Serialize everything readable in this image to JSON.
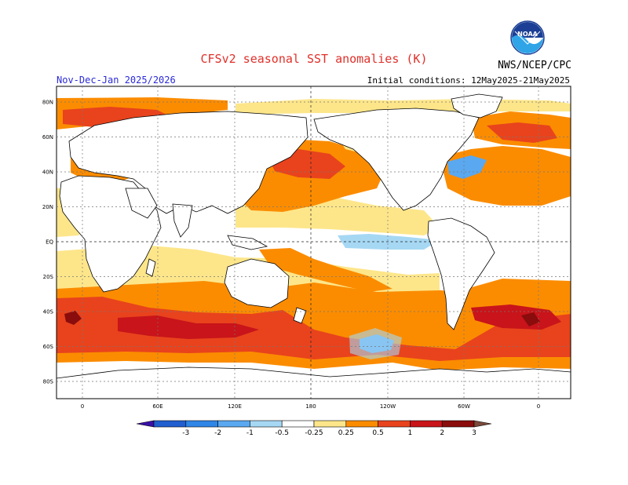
{
  "header": {
    "title": "CFSv2 seasonal SST anomalies (K)",
    "season": "Nov-Dec-Jan 2025/2026",
    "initial_conditions": "Initial conditions: 12May2025-21May2025",
    "agency": "NWS/NCEP/CPC",
    "logo_text": "NOAA"
  },
  "axes": {
    "lat_labels": [
      "80N",
      "60N",
      "40N",
      "20N",
      "EQ",
      "20S",
      "40S",
      "60S",
      "80S"
    ],
    "lon_labels": [
      "0",
      "60E",
      "120E",
      "180",
      "120W",
      "60W",
      "0"
    ]
  },
  "colorbar": {
    "labels": [
      "-3",
      "-2",
      "-1",
      "-0.5",
      "-0.25",
      "0.25",
      "0.5",
      "1",
      "2",
      "3"
    ],
    "colors": [
      "#3a10a8",
      "#1f5fd0",
      "#2e86e6",
      "#5aa8f0",
      "#a6d8f4",
      "#ffffff",
      "#fde68a",
      "#fb8c00",
      "#e8431d",
      "#c8141a",
      "#8a0c0c",
      "#7a4a3a"
    ]
  },
  "palette": {
    "ocean_neutral": "#ffffff",
    "weak_warm": "#fde68a",
    "warm": "#fb8c00",
    "strong_warm": "#e8431d",
    "very_strong_warm": "#c8141a",
    "extreme_warm": "#8a0c0c",
    "weak_cool": "#a6d8f4",
    "cool": "#5aa8f0",
    "strong_cool": "#2e86e6",
    "land": "#ffffff"
  }
}
